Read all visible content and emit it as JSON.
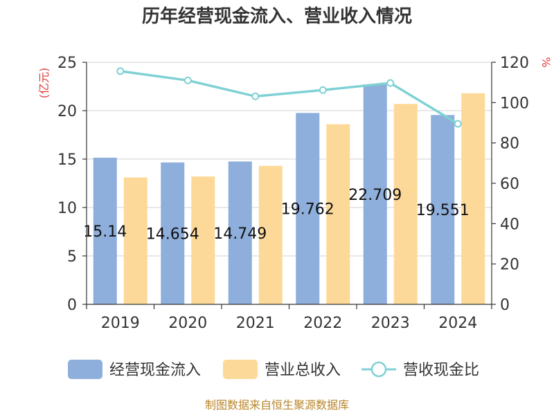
{
  "chart_data": {
    "type": "bar",
    "title": "历年经营现金流入、营业收入情况",
    "categories": [
      "2019",
      "2020",
      "2021",
      "2022",
      "2023",
      "2024"
    ],
    "y_left": {
      "unit_label": "(亿元)",
      "ylim": [
        0,
        25
      ],
      "ticks": [
        "0",
        "5",
        "10",
        "15",
        "20",
        "25"
      ]
    },
    "y_right": {
      "unit_label": "%",
      "ylim": [
        0,
        120
      ],
      "ticks": [
        "0",
        "20",
        "40",
        "60",
        "80",
        "100",
        "120"
      ]
    },
    "grid": true,
    "legend_position": "bottom",
    "series": [
      {
        "name": "经营现金流入",
        "type": "bar",
        "axis": "left",
        "color": "#8eaedb",
        "values": [
          15.14,
          14.654,
          14.749,
          19.762,
          22.709,
          19.551
        ],
        "labels": [
          "15.14",
          "14.654",
          "14.749",
          "19.762",
          "22.709",
          "19.551"
        ]
      },
      {
        "name": "营业总收入",
        "type": "bar",
        "axis": "left",
        "color": "#fdd999",
        "values": [
          13.1,
          13.2,
          14.3,
          18.6,
          20.7,
          21.8
        ]
      },
      {
        "name": "营收现金比",
        "type": "line",
        "axis": "right",
        "color": "#7fd1d4",
        "values": [
          115.6,
          111.0,
          103.1,
          106.2,
          109.7,
          89.5
        ]
      }
    ]
  },
  "footer": {
    "source": "制图数据来自恒生聚源数据库"
  }
}
